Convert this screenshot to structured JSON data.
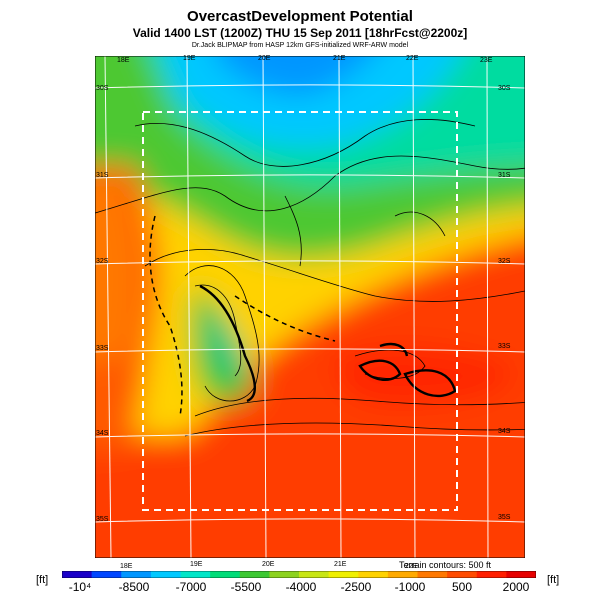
{
  "header": {
    "title": "OvercastDevelopment Potential",
    "valid_line": "Valid 1400 LST (1200Z) THU 15 Sep 2011 [18hrFcst@2200z]",
    "source_line": "Dr.Jack BLIPMAP from HASP 12km GFS-initialized WRF-ARW model"
  },
  "map": {
    "longitude_labels_top": [
      "18E",
      "19E",
      "20E",
      "21E",
      "22E",
      "23E"
    ],
    "longitude_labels_bottom": [
      "18E",
      "19E",
      "20E",
      "21E",
      "22E"
    ],
    "latitude_labels_left": [
      "30S",
      "31S",
      "32S",
      "33S",
      "34S",
      "35S"
    ],
    "latitude_labels_right": [
      "30S",
      "31S",
      "32S",
      "33S",
      "34S",
      "35S"
    ],
    "contour_note": "Terrain contours: 500 ft"
  },
  "colorbar": {
    "unit_left": "[ft]",
    "unit_right": "[ft]",
    "tick_labels": [
      "-10⁴",
      "-8500",
      "-7000",
      "-5500",
      "-4000",
      "-2500",
      "-1000",
      "500",
      "2000"
    ],
    "colors": [
      "#1a00c8",
      "#0046ff",
      "#0096ff",
      "#00c8ff",
      "#00e6c8",
      "#00dc78",
      "#3cc832",
      "#8cd21e",
      "#c8e614",
      "#f0f000",
      "#ffd200",
      "#ffaa00",
      "#ff7800",
      "#ff4b00",
      "#ff1e00",
      "#e60000"
    ]
  }
}
